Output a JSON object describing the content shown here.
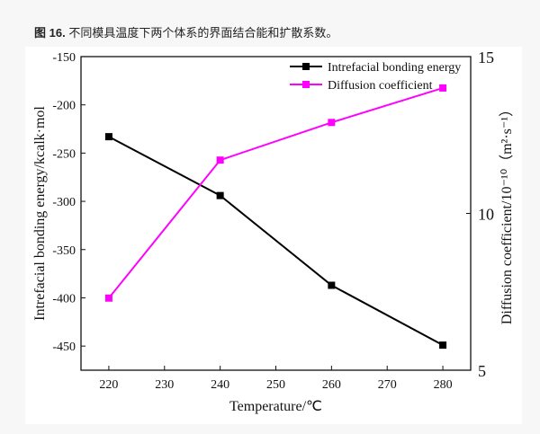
{
  "caption": {
    "label": "图 16.",
    "text": "不同模具温度下两个体系的界面结合能和扩散系数。"
  },
  "chart_data": {
    "type": "line",
    "title": "",
    "xlabel": "Temperature/℃",
    "ylabel": "Intrefacial bonding energy/kcalk·mol",
    "y2label": "Diffusion coefficient/10⁻¹⁰（m²·s⁻¹）",
    "x": [
      220,
      240,
      260,
      280
    ],
    "xlim": [
      215,
      285
    ],
    "xticks": [
      220,
      230,
      240,
      250,
      260,
      270,
      280
    ],
    "ylim": [
      -475,
      -150
    ],
    "yticks": [
      -150,
      -200,
      -250,
      -300,
      -350,
      -400,
      -450
    ],
    "y2lim": [
      5,
      15
    ],
    "y2ticks": [
      5,
      10,
      15
    ],
    "grid": false,
    "legend": "top-right",
    "series": [
      {
        "name": "Intrefacial bonding energy",
        "axis": "left",
        "color": "#000000",
        "values": [
          -233,
          -294,
          -387,
          -449
        ]
      },
      {
        "name": "Diffusion coefficient",
        "axis": "right",
        "color": "#ff00ff",
        "values": [
          7.3,
          11.7,
          12.9,
          14.0
        ]
      }
    ]
  }
}
